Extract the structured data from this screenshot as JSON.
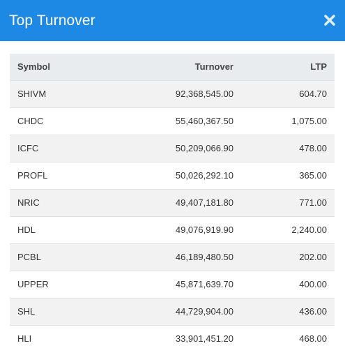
{
  "header": {
    "title": "Top Turnover",
    "close_icon": "close-icon",
    "background_color": "#1e88e5"
  },
  "table": {
    "columns": [
      "Symbol",
      "Turnover",
      "LTP"
    ],
    "rows": [
      {
        "symbol": "SHIVM",
        "turnover": "92,368,545.00",
        "ltp": "604.70"
      },
      {
        "symbol": "CHDC",
        "turnover": "55,460,367.50",
        "ltp": "1,075.00"
      },
      {
        "symbol": "ICFC",
        "turnover": "50,209,066.90",
        "ltp": "478.00"
      },
      {
        "symbol": "PROFL",
        "turnover": "50,026,292.10",
        "ltp": "365.00"
      },
      {
        "symbol": "NRIC",
        "turnover": "49,407,181.80",
        "ltp": "771.00"
      },
      {
        "symbol": "HDL",
        "turnover": "49,076,919.90",
        "ltp": "2,240.00"
      },
      {
        "symbol": "PCBL",
        "turnover": "46,189,480.50",
        "ltp": "202.00"
      },
      {
        "symbol": "UPPER",
        "turnover": "45,871,639.70",
        "ltp": "400.00"
      },
      {
        "symbol": "SHL",
        "turnover": "44,729,904.00",
        "ltp": "436.00"
      },
      {
        "symbol": "HLI",
        "turnover": "33,901,451.20",
        "ltp": "468.00"
      }
    ]
  }
}
